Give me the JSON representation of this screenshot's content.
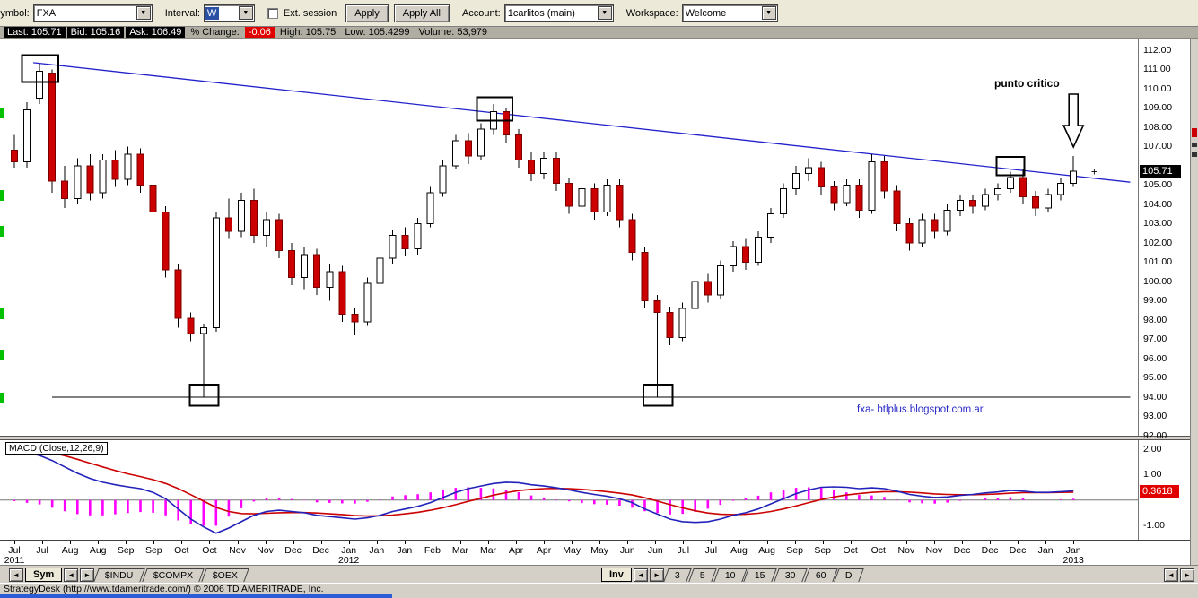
{
  "toolbar": {
    "symbol_label": "Symbol:",
    "symbol_value": "FXA",
    "interval_label": "Interval:",
    "interval_value": "W",
    "ext_session_label": "Ext. session",
    "apply_label": "Apply",
    "apply_all_label": "Apply All",
    "account_label": "Account:",
    "account_value": "1carlitos (main)",
    "workspace_label": "Workspace:",
    "workspace_value": "Welcome"
  },
  "quote_bar": {
    "last": {
      "label": "Last:",
      "value": "105.71"
    },
    "bid": {
      "label": "Bid:",
      "value": "105.16"
    },
    "ask": {
      "label": "Ask:",
      "value": "106.49"
    },
    "change": {
      "label": "% Change:",
      "value": "-0.06"
    },
    "high": {
      "label": "High:",
      "value": "105.75"
    },
    "low": {
      "label": "Low:",
      "value": "105.4299"
    },
    "volume": {
      "label": "Volume:",
      "value": "53,979"
    }
  },
  "chart": {
    "annotation": "punto critico",
    "watermark": "fxa- btlplus.blogspot.com.ar",
    "price_badge": "105.71",
    "macd_label": "MACD (Close,12,26,9)",
    "macd_badge": "0.3618"
  },
  "chart_data": [
    {
      "type": "candlestick",
      "symbol": "FXA",
      "interval": "W",
      "ylim": [
        92,
        112.6
      ],
      "y_ticks": [
        112,
        111,
        110,
        109,
        108,
        107,
        105,
        104,
        103,
        102,
        101,
        100,
        99,
        98,
        97,
        96,
        95,
        94,
        93,
        92
      ],
      "last_price": 105.71,
      "up_color": "#ffffff",
      "down_color": "#cc0000",
      "candle_format": "ohlc",
      "candles": [
        [
          106.8,
          107.6,
          105.9,
          106.2
        ],
        [
          106.2,
          109.3,
          105.9,
          108.9
        ],
        [
          109.5,
          111.3,
          109.2,
          110.9
        ],
        [
          110.8,
          111.0,
          104.6,
          105.2
        ],
        [
          105.2,
          106.0,
          103.8,
          104.3
        ],
        [
          104.3,
          106.4,
          104.0,
          106.0
        ],
        [
          106.0,
          106.6,
          104.2,
          104.6
        ],
        [
          104.6,
          106.6,
          104.3,
          106.3
        ],
        [
          106.3,
          106.8,
          104.9,
          105.3
        ],
        [
          105.3,
          107.0,
          105.0,
          106.6
        ],
        [
          106.6,
          106.9,
          104.6,
          105.0
        ],
        [
          105.0,
          105.4,
          103.2,
          103.6
        ],
        [
          103.6,
          103.9,
          100.2,
          100.6
        ],
        [
          100.6,
          100.9,
          97.6,
          98.1
        ],
        [
          98.1,
          98.4,
          96.9,
          97.3
        ],
        [
          97.3,
          97.8,
          94.0,
          97.6
        ],
        [
          97.6,
          103.6,
          97.4,
          103.3
        ],
        [
          103.3,
          104.3,
          102.2,
          102.6
        ],
        [
          102.6,
          104.6,
          102.3,
          104.2
        ],
        [
          104.2,
          104.8,
          102.0,
          102.4
        ],
        [
          102.4,
          103.6,
          101.8,
          103.2
        ],
        [
          103.2,
          103.5,
          101.2,
          101.6
        ],
        [
          101.6,
          102.0,
          99.8,
          100.2
        ],
        [
          100.2,
          101.8,
          99.6,
          101.4
        ],
        [
          101.4,
          101.7,
          99.3,
          99.7
        ],
        [
          99.7,
          100.9,
          99.0,
          100.5
        ],
        [
          100.5,
          100.8,
          97.9,
          98.3
        ],
        [
          98.3,
          98.6,
          97.2,
          97.9
        ],
        [
          97.9,
          100.2,
          97.7,
          99.9
        ],
        [
          99.9,
          101.5,
          99.6,
          101.2
        ],
        [
          101.2,
          102.7,
          100.9,
          102.4
        ],
        [
          102.4,
          102.8,
          101.3,
          101.7
        ],
        [
          101.7,
          103.3,
          101.4,
          103.0
        ],
        [
          103.0,
          104.9,
          102.8,
          104.6
        ],
        [
          104.6,
          106.3,
          104.4,
          106.0
        ],
        [
          106.0,
          107.6,
          105.8,
          107.3
        ],
        [
          107.3,
          107.7,
          106.1,
          106.5
        ],
        [
          106.5,
          108.2,
          106.3,
          107.9
        ],
        [
          107.9,
          109.2,
          107.6,
          108.8
        ],
        [
          108.8,
          109.0,
          107.2,
          107.6
        ],
        [
          107.6,
          107.9,
          105.9,
          106.3
        ],
        [
          106.3,
          106.7,
          105.2,
          105.6
        ],
        [
          105.6,
          106.7,
          105.3,
          106.4
        ],
        [
          106.4,
          106.7,
          104.7,
          105.1
        ],
        [
          105.1,
          105.4,
          103.5,
          103.9
        ],
        [
          103.9,
          105.1,
          103.6,
          104.8
        ],
        [
          104.8,
          105.1,
          103.2,
          103.6
        ],
        [
          103.6,
          105.3,
          103.4,
          105.0
        ],
        [
          105.0,
          105.3,
          102.8,
          103.2
        ],
        [
          103.2,
          103.5,
          101.1,
          101.5
        ],
        [
          101.5,
          101.8,
          98.6,
          99.0
        ],
        [
          99.0,
          99.3,
          94.0,
          98.4
        ],
        [
          98.4,
          98.7,
          96.7,
          97.1
        ],
        [
          97.1,
          98.9,
          96.9,
          98.6
        ],
        [
          98.6,
          100.3,
          98.4,
          100.0
        ],
        [
          100.0,
          100.4,
          98.9,
          99.3
        ],
        [
          99.3,
          101.1,
          99.1,
          100.8
        ],
        [
          100.8,
          102.1,
          100.5,
          101.8
        ],
        [
          101.8,
          102.2,
          100.6,
          101.0
        ],
        [
          101.0,
          102.6,
          100.8,
          102.3
        ],
        [
          102.3,
          103.8,
          102.0,
          103.5
        ],
        [
          103.5,
          105.1,
          103.3,
          104.8
        ],
        [
          104.8,
          106.0,
          104.5,
          105.6
        ],
        [
          105.6,
          106.4,
          105.2,
          105.9
        ],
        [
          105.9,
          106.2,
          104.5,
          104.9
        ],
        [
          104.9,
          105.2,
          103.7,
          104.1
        ],
        [
          104.1,
          105.3,
          103.9,
          105.0
        ],
        [
          105.0,
          105.3,
          103.3,
          103.7
        ],
        [
          103.7,
          106.6,
          103.5,
          106.2
        ],
        [
          106.2,
          106.5,
          104.3,
          104.7
        ],
        [
          104.7,
          105.0,
          102.6,
          103.0
        ],
        [
          103.0,
          103.3,
          101.6,
          102.0
        ],
        [
          102.0,
          103.5,
          101.8,
          103.2
        ],
        [
          103.2,
          103.5,
          102.2,
          102.6
        ],
        [
          102.6,
          104.0,
          102.4,
          103.7
        ],
        [
          103.7,
          104.5,
          103.4,
          104.2
        ],
        [
          104.2,
          104.5,
          103.5,
          103.9
        ],
        [
          103.9,
          104.8,
          103.7,
          104.5
        ],
        [
          104.5,
          105.1,
          104.2,
          104.8
        ],
        [
          104.8,
          105.7,
          104.6,
          105.4
        ],
        [
          105.4,
          105.8,
          104.0,
          104.4
        ],
        [
          104.4,
          104.7,
          103.4,
          103.8
        ],
        [
          103.8,
          104.8,
          103.6,
          104.5
        ],
        [
          104.5,
          105.4,
          104.2,
          105.1
        ],
        [
          105.1,
          106.5,
          104.9,
          105.71
        ]
      ],
      "trendline": {
        "from_i": 1.5,
        "from_p": 111.35,
        "to_i": 88.5,
        "to_p": 105.15,
        "color": "#2222cc"
      },
      "support_line": {
        "price": 94,
        "from_i": 3,
        "to_i": 88.5,
        "color": "#000000"
      },
      "highlight_boxes": [
        {
          "i0": 0.6,
          "i1": 3.5,
          "p0": 110.35,
          "p1": 111.75
        },
        {
          "i0": 36.7,
          "i1": 39.5,
          "p0": 108.35,
          "p1": 109.55
        },
        {
          "i0": 77.9,
          "i1": 80.1,
          "p0": 105.5,
          "p1": 106.45
        },
        {
          "i0": 13.9,
          "i1": 16.2,
          "p0": 93.55,
          "p1": 94.65
        },
        {
          "i0": 49.9,
          "i1": 52.2,
          "p0": 93.55,
          "p1": 94.65
        }
      ],
      "arrow_at_i": 84,
      "x_months": [
        "Jul",
        "Jul",
        "Aug",
        "Aug",
        "Sep",
        "Sep",
        "Oct",
        "Oct",
        "Nov",
        "Nov",
        "Dec",
        "Dec",
        "Jan",
        "Jan",
        "Jan",
        "Feb",
        "Mar",
        "Mar",
        "Apr",
        "Apr",
        "May",
        "May",
        "Jun",
        "Jun",
        "Jul",
        "Jul",
        "Aug",
        "Aug",
        "Sep",
        "Sep",
        "Oct",
        "Oct",
        "Nov",
        "Nov",
        "Dec",
        "Dec",
        "Dec",
        "Jan",
        "Jan"
      ],
      "x_years": [
        {
          "label": "2011",
          "k": 0
        },
        {
          "label": "2012",
          "k": 12
        },
        {
          "label": "2013",
          "k": 38
        }
      ]
    },
    {
      "type": "line",
      "title": "MACD (Close,12,26,9)",
      "ylim": [
        -1.5,
        2.35
      ],
      "y_ticks": [
        2,
        1,
        -1
      ],
      "current_value": 0.3618,
      "histogram_color": "#ff00ff",
      "series": [
        {
          "name": "MACD",
          "color": "#2222bb",
          "values": [
            1.95,
            1.85,
            1.75,
            1.55,
            1.3,
            1.05,
            0.85,
            0.7,
            0.6,
            0.52,
            0.45,
            0.3,
            0.05,
            -0.35,
            -0.75,
            -1.05,
            -1.3,
            -1.1,
            -0.85,
            -0.6,
            -0.45,
            -0.4,
            -0.45,
            -0.5,
            -0.6,
            -0.65,
            -0.7,
            -0.75,
            -0.7,
            -0.6,
            -0.45,
            -0.35,
            -0.25,
            -0.1,
            0.1,
            0.3,
            0.45,
            0.55,
            0.65,
            0.7,
            0.68,
            0.6,
            0.55,
            0.48,
            0.4,
            0.3,
            0.22,
            0.15,
            0.05,
            -0.1,
            -0.35,
            -0.55,
            -0.75,
            -0.85,
            -0.88,
            -0.85,
            -0.75,
            -0.6,
            -0.5,
            -0.35,
            -0.15,
            0.05,
            0.25,
            0.4,
            0.5,
            0.52,
            0.5,
            0.45,
            0.48,
            0.45,
            0.35,
            0.22,
            0.15,
            0.1,
            0.12,
            0.18,
            0.22,
            0.28,
            0.32,
            0.38,
            0.35,
            0.3,
            0.3,
            0.33,
            0.36
          ]
        },
        {
          "name": "Signal",
          "color": "#cc0000",
          "values": [
            1.99,
            1.96,
            1.92,
            1.85,
            1.74,
            1.6,
            1.45,
            1.3,
            1.16,
            1.03,
            0.92,
            0.8,
            0.65,
            0.45,
            0.21,
            -0.04,
            -0.29,
            -0.45,
            -0.53,
            -0.54,
            -0.52,
            -0.5,
            -0.49,
            -0.49,
            -0.51,
            -0.54,
            -0.57,
            -0.61,
            -0.63,
            -0.62,
            -0.59,
            -0.54,
            -0.48,
            -0.4,
            -0.3,
            -0.18,
            -0.05,
            0.07,
            0.19,
            0.29,
            0.37,
            0.42,
            0.45,
            0.46,
            0.45,
            0.42,
            0.38,
            0.33,
            0.27,
            0.2,
            0.09,
            -0.04,
            -0.18,
            -0.31,
            -0.42,
            -0.51,
            -0.56,
            -0.57,
            -0.56,
            -0.52,
            -0.45,
            -0.35,
            -0.23,
            -0.1,
            0.02,
            0.12,
            0.2,
            0.25,
            0.3,
            0.33,
            0.33,
            0.31,
            0.28,
            0.24,
            0.22,
            0.21,
            0.21,
            0.22,
            0.24,
            0.27,
            0.29,
            0.29,
            0.29,
            0.3,
            0.31
          ]
        }
      ]
    }
  ],
  "bottom_left_tabs": {
    "nav_label": "Sym",
    "tabs": [
      "$INDU",
      "$COMPX",
      "$OEX"
    ]
  },
  "bottom_right_tabs": {
    "nav_label": "Inv",
    "tabs": [
      "3",
      "5",
      "10",
      "15",
      "30",
      "60",
      "D"
    ]
  },
  "status_bar": "StrategyDesk (http://www.tdameritrade.com/) © 2006 TD AMERITRADE, Inc."
}
